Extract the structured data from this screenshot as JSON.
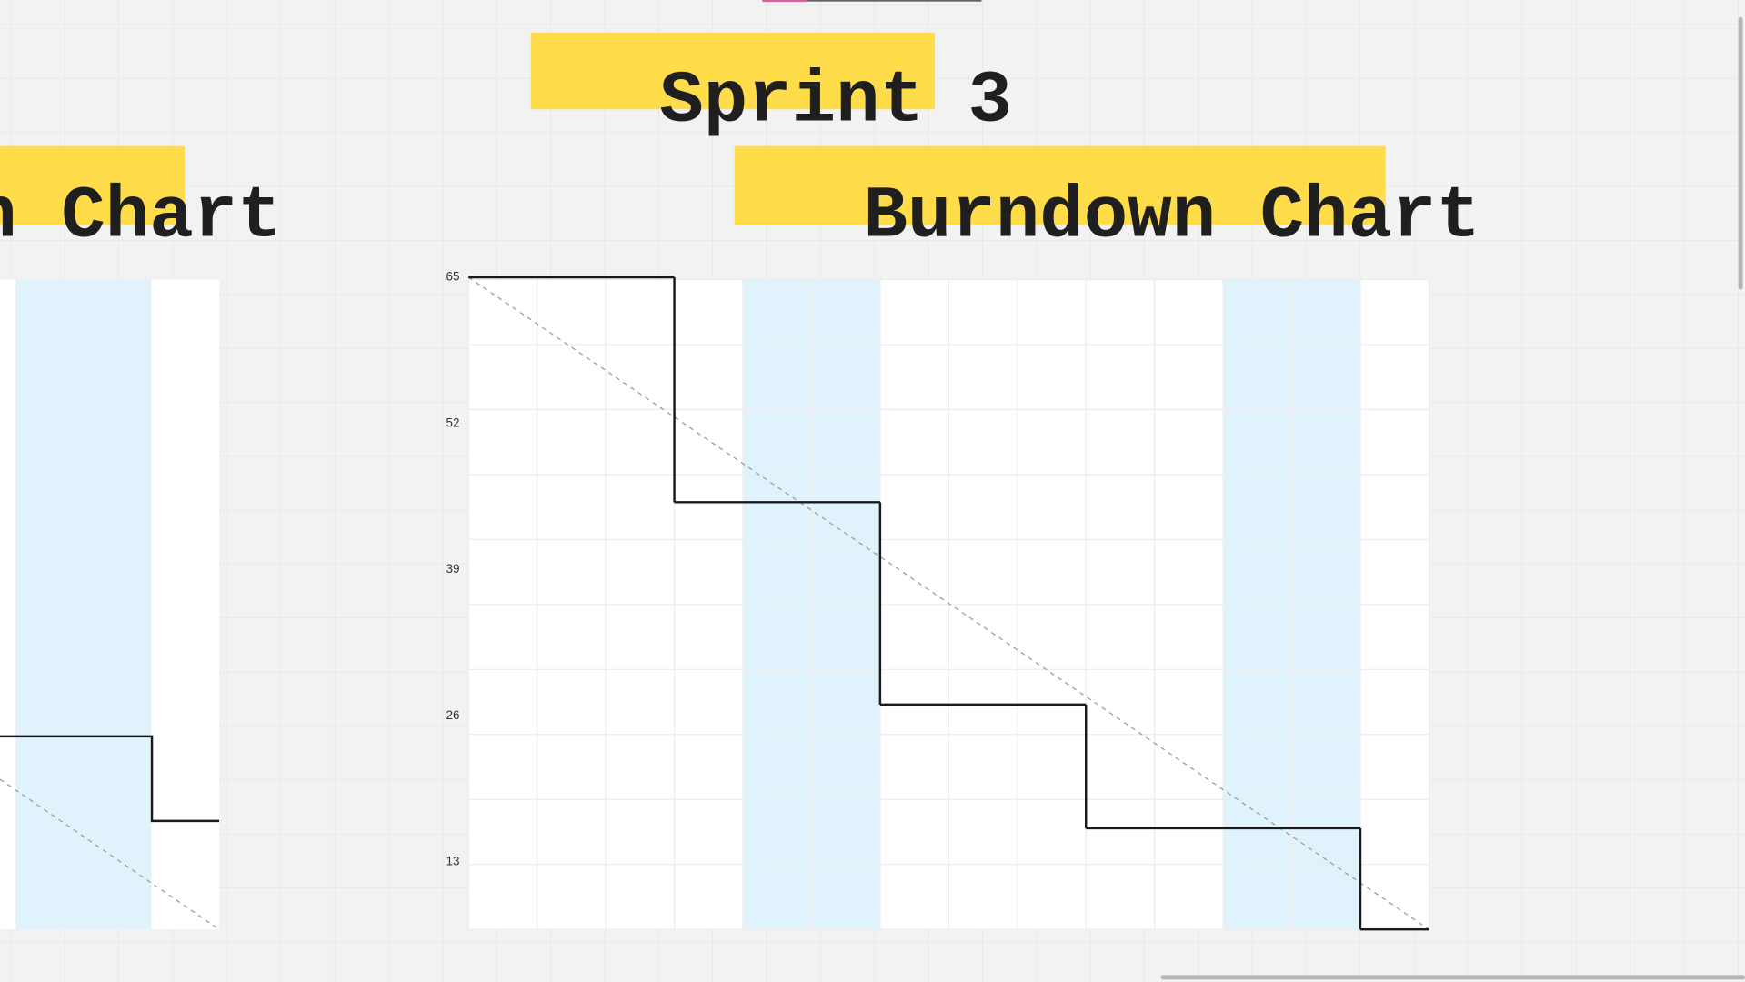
{
  "board": {
    "sprint_title": "Sprint 3",
    "left_title": "n Chart"
  },
  "chart_data": {
    "type": "step",
    "title": "Burndown Chart",
    "series": [
      {
        "color": "#1a1a1a",
        "x": [
          0,
          3,
          6,
          9,
          13,
          14
        ],
        "values": [
          65,
          45,
          27,
          16,
          7,
          7
        ]
      }
    ],
    "ideal_line": {
      "color": "#999999",
      "x": [
        0,
        14
      ],
      "values": [
        65,
        7
      ]
    },
    "shaded_ranges": [
      [
        4,
        6
      ],
      [
        11,
        13
      ]
    ],
    "shade_color": "#e0f3fc",
    "xlim": [
      0,
      14
    ],
    "ylim": [
      7,
      65
    ],
    "yticks": [
      65,
      52,
      39,
      26,
      13
    ],
    "grid": true
  }
}
